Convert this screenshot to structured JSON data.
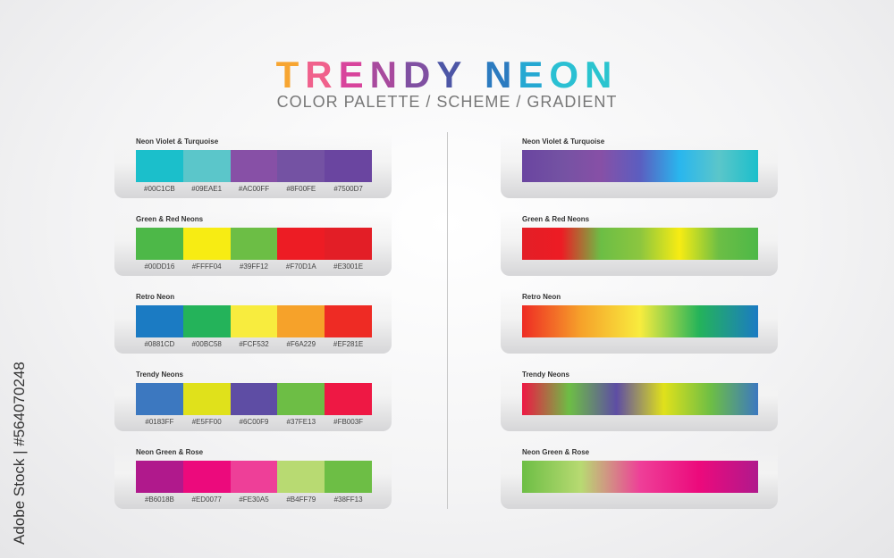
{
  "title": {
    "text": "TRENDY NEON",
    "letter_colors": [
      "#F7A531",
      "#F0618C",
      "#D8449C",
      "#A84A9E",
      "#8050A2",
      "#4D56A6",
      "#2E5BAA",
      "#2C7BC0",
      "#25A8D2",
      "#2BC0D3",
      "#2BC4CF"
    ]
  },
  "subtitle": "COLOR PALETTE / SCHEME / GRADIENT",
  "watermark": "Adobe Stock | #564070248",
  "palettes": [
    {
      "name": "Neon Violet & Turquoise",
      "codes": [
        "#00C1CB",
        "#09EAE1",
        "#AC00FF",
        "#8F00FE",
        "#7500D7"
      ],
      "display": [
        "#1BBFCB",
        "#5BC6CA",
        "#8750A6",
        "#7452A3",
        "#6A45A0"
      ],
      "gradient": [
        "#6A45A0",
        "#7452A3",
        "#8750A6",
        "#5B5EC0",
        "#29B6EE",
        "#5BC6CA",
        "#1BBFCB"
      ]
    },
    {
      "name": "Green & Red Neons",
      "codes": [
        "#00DD16",
        "#FFFF04",
        "#39FF12",
        "#F70D1A",
        "#E3001E"
      ],
      "display": [
        "#4DB848",
        "#F7EC13",
        "#6CBE45",
        "#ED1C24",
        "#E31E26"
      ],
      "gradient": [
        "#E31E26",
        "#ED1C24",
        "#6CBE45",
        "#8CC63F",
        "#F7EC13",
        "#6CBE45",
        "#4DB848"
      ]
    },
    {
      "name": "Retro Neon",
      "codes": [
        "#0881CD",
        "#00BC58",
        "#FCF532",
        "#F6A229",
        "#EF281E"
      ],
      "display": [
        "#1B7BC3",
        "#24B35A",
        "#F8EC3E",
        "#F6A22A",
        "#EE2B24"
      ],
      "gradient": [
        "#EE2B24",
        "#F6A22A",
        "#F8EC3E",
        "#24B35A",
        "#1B7BC3"
      ]
    },
    {
      "name": "Trendy Neons",
      "codes": [
        "#0183FF",
        "#E5FF00",
        "#6C00F9",
        "#37FE13",
        "#FB003F"
      ],
      "display": [
        "#3C78C0",
        "#E0E11B",
        "#5E4DA4",
        "#6DBE45",
        "#EE1844"
      ],
      "gradient": [
        "#EE1844",
        "#6DBE45",
        "#5E4DA4",
        "#E0E11B",
        "#6DBE45",
        "#3C78C0"
      ]
    },
    {
      "name": "Neon Green & Rose",
      "codes": [
        "#B6018B",
        "#ED0077",
        "#FE30A5",
        "#B4FF79",
        "#38FF13"
      ],
      "display": [
        "#B0198C",
        "#EC0A7C",
        "#EE3F98",
        "#B8DA72",
        "#6DBE45"
      ],
      "gradient": [
        "#6DBE45",
        "#B8DA72",
        "#EE3F98",
        "#EC0A7C",
        "#B0198C"
      ]
    }
  ]
}
